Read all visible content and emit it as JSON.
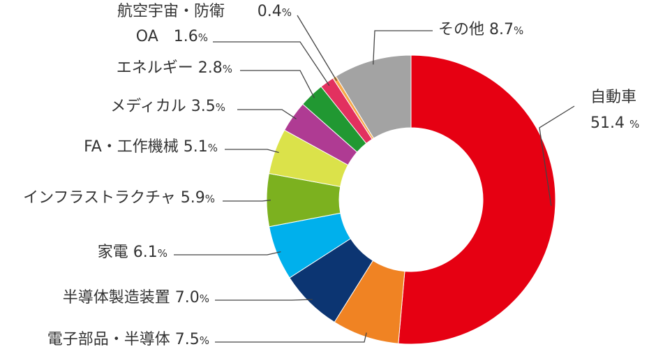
{
  "chart_data": {
    "type": "donut",
    "unit": "%",
    "series": [
      {
        "label": "自動車",
        "value": 51.4,
        "color": "#e60012"
      },
      {
        "label": "電子部品・半導体",
        "value": 7.5,
        "color": "#f08323"
      },
      {
        "label": "半導体製造装置",
        "value": 7.0,
        "color": "#0c3572"
      },
      {
        "label": "家電",
        "value": 6.1,
        "color": "#00b0ec"
      },
      {
        "label": "インフラストラクチャ",
        "value": 5.9,
        "color": "#7cb11f"
      },
      {
        "label": "FA・工作機械",
        "value": 5.1,
        "color": "#dbe24a"
      },
      {
        "label": "メディカル",
        "value": 3.5,
        "color": "#af3b93"
      },
      {
        "label": "エネルギー",
        "value": 2.8,
        "color": "#219832"
      },
      {
        "label": "OA",
        "value": 1.6,
        "color": "#e2315f"
      },
      {
        "label": "航空宇宙・防衛",
        "value": 0.4,
        "color": "#f6a84a"
      },
      {
        "label": "その他",
        "value": 8.7,
        "color": "#a3a3a3"
      }
    ]
  }
}
